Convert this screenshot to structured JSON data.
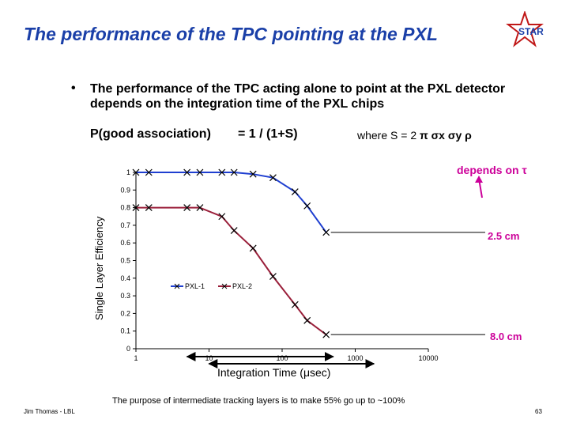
{
  "slide": {
    "title": "The performance of the TPC pointing at the PXL",
    "bullet_marker": "•",
    "bullet": "The performance of the TPC acting alone to point at the PXL detector depends on the integration time of the PXL chips",
    "formula_left": "P(good association)",
    "formula_right": "= 1 / (1+S)",
    "where_prefix": "where S = 2",
    "where_symbols": "π σx σy ρ",
    "depends": "depends on τ",
    "label_25": "2.5 cm",
    "label_80": "8.0 cm",
    "purpose": "The purpose of intermediate tracking layers is to make 55% go up to ~100%",
    "footer_left": "Jim Thomas - LBL",
    "footer_right": "63",
    "logo_text": "STAR",
    "colors": {
      "title": "#1a3fa8",
      "accent": "#cc0099",
      "series1": "#1f3fd0",
      "series2": "#9a1f3a",
      "markers": "#000000"
    }
  },
  "chart_data": {
    "type": "line",
    "xscale": "log",
    "xlim": [
      1,
      10000
    ],
    "ylim": [
      0,
      1
    ],
    "xlabel": "Integration Time (μsec)",
    "ylabel": "Single Layer Efficiency",
    "xtick_labels": [
      "1",
      "10",
      "100",
      "1000",
      "10000"
    ],
    "ytick_labels": [
      "0",
      "0.1",
      "0.2",
      "0.3",
      "0.4",
      "0.5",
      "0.6",
      "0.7",
      "0.8",
      "0.9",
      "1"
    ],
    "legend_position": "center",
    "series": [
      {
        "name": "PXL-1",
        "x": [
          1,
          1.5,
          5,
          7.5,
          15,
          22,
          40,
          75,
          150,
          220,
          400
        ],
        "y": [
          1.0,
          1.0,
          1.0,
          1.0,
          1.0,
          1.0,
          0.99,
          0.97,
          0.89,
          0.81,
          0.66
        ]
      },
      {
        "name": "PXL-2",
        "x": [
          1,
          1.5,
          5,
          7.5,
          15,
          22,
          40,
          75,
          150,
          220,
          400
        ],
        "y": [
          0.8,
          0.8,
          0.8,
          0.8,
          0.75,
          0.67,
          0.57,
          0.41,
          0.25,
          0.16,
          0.08
        ]
      }
    ],
    "arrows": [
      {
        "from": 5,
        "to": 500
      },
      {
        "from": 10,
        "to": 1800
      }
    ]
  }
}
